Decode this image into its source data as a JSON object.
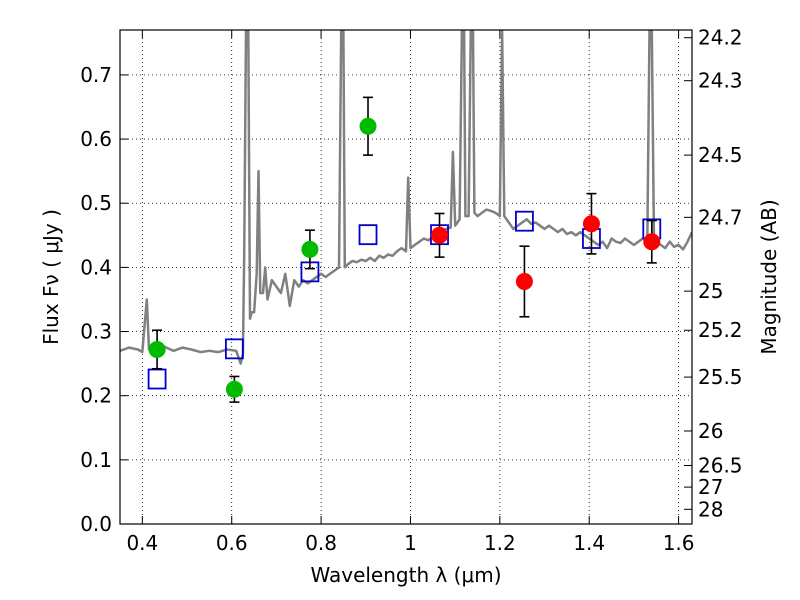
{
  "chart_data": {
    "type": "scatter",
    "xlabel": "Wavelength  λ (μm)",
    "ylabel": "Flux  Fν  ( μJy )",
    "y2label": "Magnitude (AB)",
    "xlim": [
      0.35,
      1.63
    ],
    "ylim": [
      0.0,
      0.77
    ],
    "grid": true,
    "x_ticks": [
      0.4,
      0.6,
      0.8,
      1.0,
      1.2,
      1.4,
      1.6
    ],
    "x_tick_labels": [
      "0.4",
      "0.6",
      "0.8",
      "1",
      "1.2",
      "1.4",
      "1.6"
    ],
    "y_ticks": [
      0.0,
      0.1,
      0.2,
      0.3,
      0.4,
      0.5,
      0.6,
      0.7
    ],
    "y_tick_labels": [
      "0.0",
      "0.1",
      "0.2",
      "0.3",
      "0.4",
      "0.5",
      "0.6",
      "0.7"
    ],
    "mag_ticks": [
      {
        "label": "24.2",
        "flux": 0.758
      },
      {
        "label": "24.3",
        "flux": 0.691
      },
      {
        "label": "24.5",
        "flux": 0.575
      },
      {
        "label": "24.7",
        "flux": 0.478
      },
      {
        "label": "25",
        "flux": 0.363
      },
      {
        "label": "25.2",
        "flux": 0.302
      },
      {
        "label": "25.5",
        "flux": 0.229
      },
      {
        "label": "26",
        "flux": 0.145
      },
      {
        "label": "26.5",
        "flux": 0.0912
      },
      {
        "label": "27",
        "flux": 0.0575
      },
      {
        "label": "28",
        "flux": 0.0229
      }
    ],
    "series": [
      {
        "marker": "circle",
        "color": "#00bb00",
        "points": [
          {
            "x": 0.433,
            "y": 0.272,
            "err": 0.03
          },
          {
            "x": 0.606,
            "y": 0.21,
            "err": 0.02
          },
          {
            "x": 0.775,
            "y": 0.428,
            "err": 0.03
          },
          {
            "x": 0.905,
            "y": 0.62,
            "err": 0.045
          }
        ]
      },
      {
        "marker": "circle",
        "color": "#ff0000",
        "points": [
          {
            "x": 1.065,
            "y": 0.45,
            "err": 0.034
          },
          {
            "x": 1.255,
            "y": 0.378,
            "err": 0.055
          },
          {
            "x": 1.405,
            "y": 0.468,
            "err": 0.047
          },
          {
            "x": 1.54,
            "y": 0.44,
            "err": 0.033
          }
        ]
      },
      {
        "marker": "open-square",
        "color": "#0000cc",
        "points": [
          {
            "x": 0.433,
            "y": 0.226
          },
          {
            "x": 0.606,
            "y": 0.273
          },
          {
            "x": 0.775,
            "y": 0.393
          },
          {
            "x": 0.905,
            "y": 0.451
          },
          {
            "x": 1.065,
            "y": 0.451
          },
          {
            "x": 1.255,
            "y": 0.472
          },
          {
            "x": 1.405,
            "y": 0.445
          },
          {
            "x": 1.54,
            "y": 0.46
          }
        ]
      },
      {
        "marker": "line",
        "color": "#808080",
        "points": [
          [
            0.35,
            0.27
          ],
          [
            0.37,
            0.275
          ],
          [
            0.39,
            0.272
          ],
          [
            0.4,
            0.268
          ],
          [
            0.41,
            0.35
          ],
          [
            0.415,
            0.272
          ],
          [
            0.43,
            0.273
          ],
          [
            0.45,
            0.276
          ],
          [
            0.47,
            0.27
          ],
          [
            0.49,
            0.275
          ],
          [
            0.51,
            0.272
          ],
          [
            0.53,
            0.268
          ],
          [
            0.55,
            0.27
          ],
          [
            0.57,
            0.268
          ],
          [
            0.59,
            0.272
          ],
          [
            0.61,
            0.27
          ],
          [
            0.62,
            0.25
          ],
          [
            0.625,
            0.265
          ],
          [
            0.628,
            0.42
          ],
          [
            0.632,
            0.77
          ],
          [
            0.637,
            0.77
          ],
          [
            0.641,
            0.32
          ],
          [
            0.645,
            0.33
          ],
          [
            0.65,
            0.33
          ],
          [
            0.656,
            0.39
          ],
          [
            0.66,
            0.55
          ],
          [
            0.664,
            0.36
          ],
          [
            0.67,
            0.36
          ],
          [
            0.675,
            0.4
          ],
          [
            0.68,
            0.35
          ],
          [
            0.69,
            0.38
          ],
          [
            0.7,
            0.37
          ],
          [
            0.71,
            0.36
          ],
          [
            0.72,
            0.39
          ],
          [
            0.73,
            0.34
          ],
          [
            0.74,
            0.38
          ],
          [
            0.75,
            0.37
          ],
          [
            0.76,
            0.38
          ],
          [
            0.77,
            0.375
          ],
          [
            0.78,
            0.38
          ],
          [
            0.79,
            0.385
          ],
          [
            0.8,
            0.39
          ],
          [
            0.81,
            0.385
          ],
          [
            0.82,
            0.39
          ],
          [
            0.83,
            0.395
          ],
          [
            0.84,
            0.4
          ],
          [
            0.845,
            0.77
          ],
          [
            0.85,
            0.77
          ],
          [
            0.853,
            0.4
          ],
          [
            0.86,
            0.405
          ],
          [
            0.87,
            0.41
          ],
          [
            0.88,
            0.408
          ],
          [
            0.89,
            0.412
          ],
          [
            0.9,
            0.41
          ],
          [
            0.91,
            0.415
          ],
          [
            0.92,
            0.41
          ],
          [
            0.93,
            0.418
          ],
          [
            0.94,
            0.415
          ],
          [
            0.95,
            0.42
          ],
          [
            0.96,
            0.418
          ],
          [
            0.97,
            0.425
          ],
          [
            0.98,
            0.43
          ],
          [
            0.99,
            0.425
          ],
          [
            0.995,
            0.54
          ],
          [
            1.0,
            0.43
          ],
          [
            1.01,
            0.435
          ],
          [
            1.02,
            0.44
          ],
          [
            1.03,
            0.445
          ],
          [
            1.04,
            0.442
          ],
          [
            1.05,
            0.448
          ],
          [
            1.06,
            0.45
          ],
          [
            1.07,
            0.455
          ],
          [
            1.08,
            0.46
          ],
          [
            1.09,
            0.462
          ],
          [
            1.095,
            0.58
          ],
          [
            1.1,
            0.465
          ],
          [
            1.105,
            0.47
          ],
          [
            1.11,
            0.475
          ],
          [
            1.115,
            0.77
          ],
          [
            1.12,
            0.77
          ],
          [
            1.123,
            0.48
          ],
          [
            1.13,
            0.48
          ],
          [
            1.135,
            0.77
          ],
          [
            1.14,
            0.77
          ],
          [
            1.143,
            0.485
          ],
          [
            1.15,
            0.48
          ],
          [
            1.16,
            0.485
          ],
          [
            1.17,
            0.49
          ],
          [
            1.18,
            0.488
          ],
          [
            1.19,
            0.485
          ],
          [
            1.2,
            0.48
          ],
          [
            1.205,
            0.77
          ],
          [
            1.21,
            0.48
          ],
          [
            1.22,
            0.47
          ],
          [
            1.23,
            0.46
          ],
          [
            1.24,
            0.465
          ],
          [
            1.25,
            0.47
          ],
          [
            1.26,
            0.475
          ],
          [
            1.27,
            0.468
          ],
          [
            1.28,
            0.47
          ],
          [
            1.29,
            0.465
          ],
          [
            1.3,
            0.46
          ],
          [
            1.31,
            0.465
          ],
          [
            1.32,
            0.46
          ],
          [
            1.33,
            0.455
          ],
          [
            1.34,
            0.46
          ],
          [
            1.35,
            0.452
          ],
          [
            1.36,
            0.455
          ],
          [
            1.37,
            0.45
          ],
          [
            1.38,
            0.455
          ],
          [
            1.39,
            0.45
          ],
          [
            1.4,
            0.445
          ],
          [
            1.41,
            0.44
          ],
          [
            1.42,
            0.435
          ],
          [
            1.43,
            0.44
          ],
          [
            1.44,
            0.43
          ],
          [
            1.45,
            0.445
          ],
          [
            1.46,
            0.44
          ],
          [
            1.47,
            0.438
          ],
          [
            1.48,
            0.445
          ],
          [
            1.49,
            0.44
          ],
          [
            1.5,
            0.435
          ],
          [
            1.51,
            0.44
          ],
          [
            1.52,
            0.445
          ],
          [
            1.53,
            0.44
          ],
          [
            1.535,
            0.77
          ],
          [
            1.54,
            0.77
          ],
          [
            1.545,
            0.44
          ],
          [
            1.55,
            0.44
          ],
          [
            1.56,
            0.435
          ],
          [
            1.57,
            0.43
          ],
          [
            1.58,
            0.44
          ],
          [
            1.59,
            0.432
          ],
          [
            1.6,
            0.435
          ],
          [
            1.61,
            0.428
          ],
          [
            1.62,
            0.44
          ],
          [
            1.63,
            0.455
          ]
        ]
      }
    ]
  }
}
